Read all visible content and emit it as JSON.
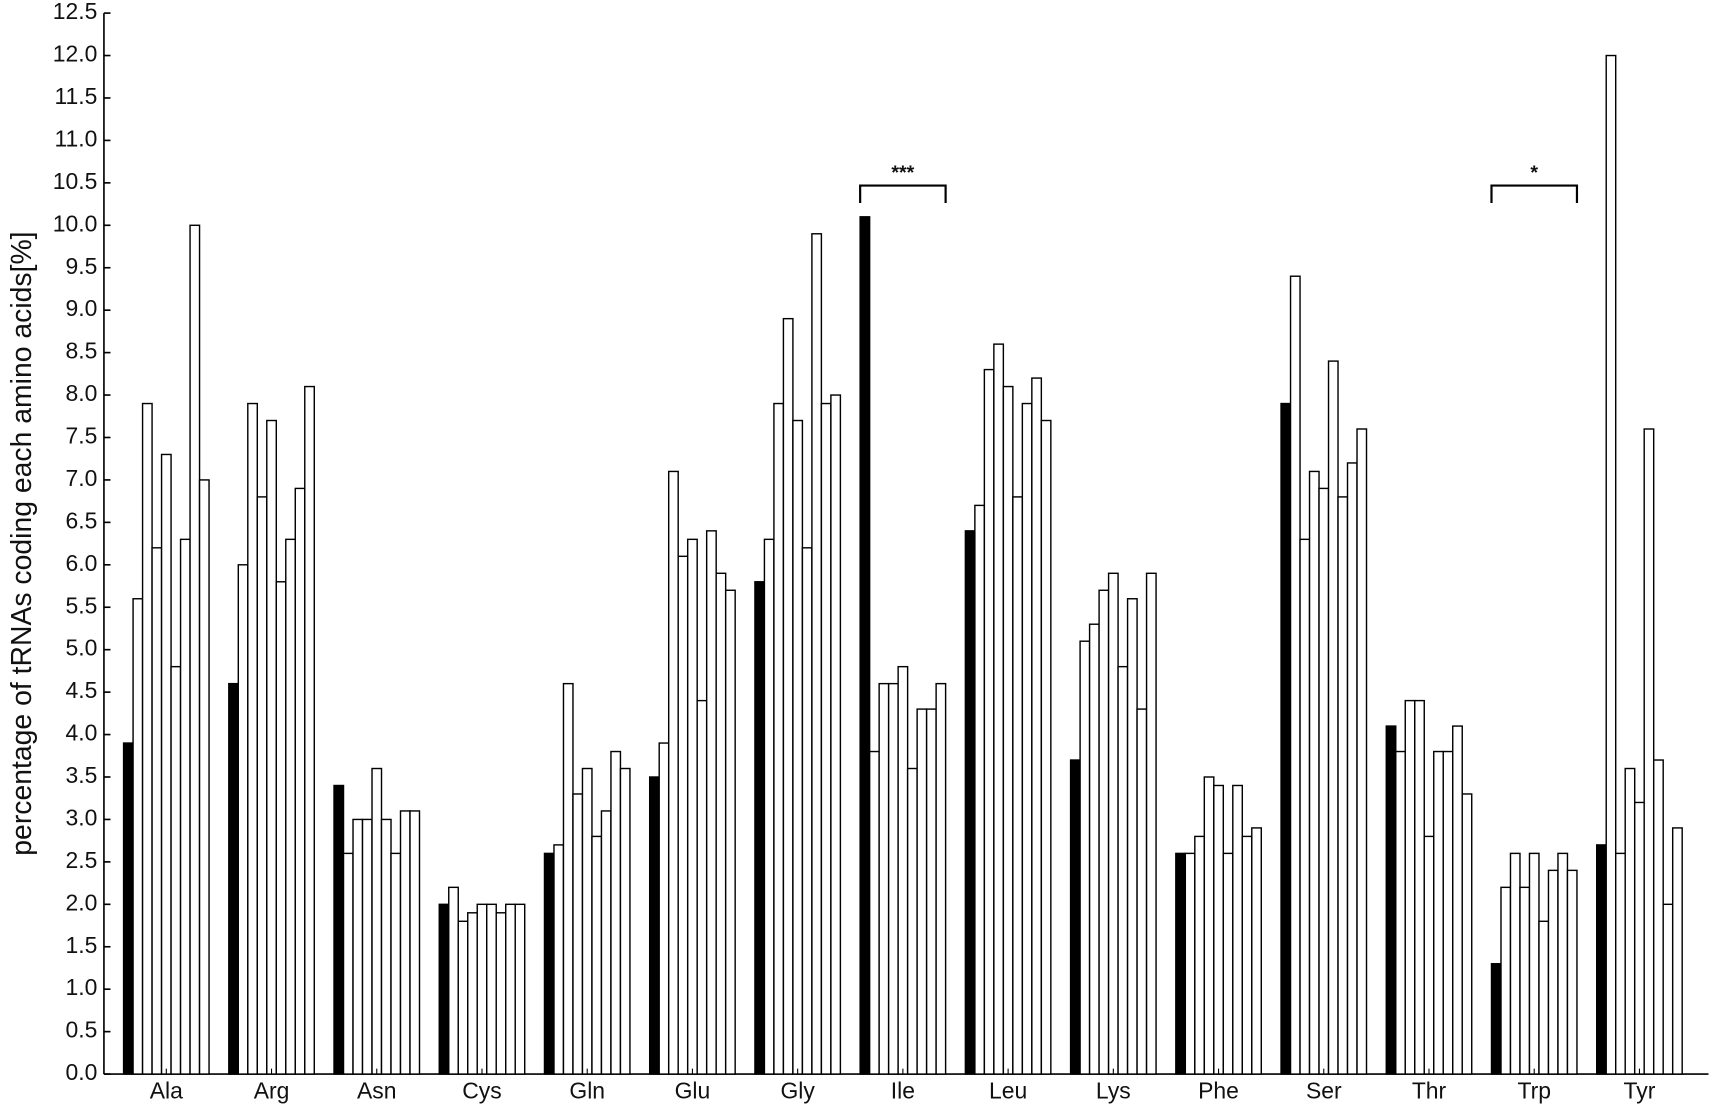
{
  "chart_data": {
    "type": "bar",
    "y_label": "percentage of tRNAs coding each amino acids[%]",
    "categories": [
      "Ala",
      "Arg",
      "Asn",
      "Cys",
      "Gln",
      "Glu",
      "Gly",
      "Ile",
      "Leu",
      "Lys",
      "Phe",
      "Ser",
      "Thr",
      "Trp",
      "Tyr"
    ],
    "series": [
      {
        "color": "#000000",
        "values": [
          3.9,
          4.6,
          3.4,
          2.0,
          2.6,
          3.5,
          5.8,
          10.1,
          6.4,
          3.7,
          2.6,
          7.9,
          4.1,
          1.3,
          2.7
        ]
      },
      {
        "color": "#ffffff",
        "values": [
          5.6,
          6.0,
          2.6,
          2.2,
          2.7,
          3.9,
          6.3,
          3.8,
          6.7,
          5.1,
          2.6,
          9.4,
          3.8,
          2.2,
          12.0
        ]
      },
      {
        "color": "#ffffff",
        "values": [
          7.9,
          7.9,
          3.0,
          1.8,
          4.6,
          7.1,
          7.9,
          4.6,
          8.3,
          5.3,
          2.8,
          6.3,
          4.4,
          2.6,
          2.6
        ]
      },
      {
        "color": "#ffffff",
        "values": [
          6.2,
          6.8,
          3.0,
          1.9,
          3.3,
          6.1,
          8.9,
          4.6,
          8.6,
          5.7,
          3.5,
          7.1,
          4.4,
          2.2,
          3.6
        ]
      },
      {
        "color": "#ffffff",
        "values": [
          7.3,
          7.7,
          3.6,
          2.0,
          3.6,
          6.3,
          7.7,
          4.8,
          8.1,
          5.9,
          3.4,
          6.9,
          2.8,
          2.6,
          3.2
        ]
      },
      {
        "color": "#ffffff",
        "values": [
          4.8,
          5.8,
          3.0,
          2.0,
          2.8,
          4.4,
          6.2,
          3.6,
          6.8,
          4.8,
          2.6,
          8.4,
          3.8,
          1.8,
          7.6
        ]
      },
      {
        "color": "#ffffff",
        "values": [
          6.3,
          6.3,
          2.6,
          1.9,
          3.1,
          6.4,
          9.9,
          4.3,
          7.9,
          5.6,
          3.4,
          6.8,
          3.8,
          2.4,
          3.7
        ]
      },
      {
        "color": "#ffffff",
        "values": [
          10.0,
          6.9,
          3.1,
          2.0,
          3.8,
          5.9,
          7.9,
          4.3,
          8.2,
          4.3,
          2.8,
          7.2,
          4.1,
          2.6,
          2.0
        ]
      },
      {
        "color": "#ffffff",
        "values": [
          7.0,
          8.1,
          3.1,
          2.0,
          3.6,
          5.7,
          8.0,
          4.6,
          7.7,
          5.9,
          2.9,
          7.6,
          3.3,
          2.4,
          2.9
        ]
      }
    ],
    "ylim": [
      0,
      12.5
    ],
    "yticks": [
      {
        "value": 0,
        "label": "0.0"
      },
      0.5,
      {
        "value": 1,
        "label": "1.0"
      },
      1.5,
      {
        "value": 2,
        "label": "2.0"
      },
      2.5,
      {
        "value": 3,
        "label": "3.0"
      },
      3.5,
      {
        "value": 4,
        "label": "4.0"
      },
      4.5,
      {
        "value": 5,
        "label": "5.0"
      },
      5.5,
      {
        "value": 6,
        "label": "6.0"
      },
      6.5,
      {
        "value": 7,
        "label": "7.0"
      },
      7.5,
      {
        "value": 8,
        "label": "8.0"
      },
      8.5,
      {
        "value": 9,
        "label": "9.0"
      },
      9.5,
      {
        "value": 10,
        "label": "10.0"
      },
      10.5,
      {
        "value": 11,
        "label": "11.0"
      },
      11.5,
      {
        "value": 12,
        "label": "12.0"
      },
      12.5
    ],
    "annotations": [
      {
        "text": "***",
        "category": "Ile"
      },
      {
        "text": "*",
        "category": "Trp"
      }
    ]
  }
}
